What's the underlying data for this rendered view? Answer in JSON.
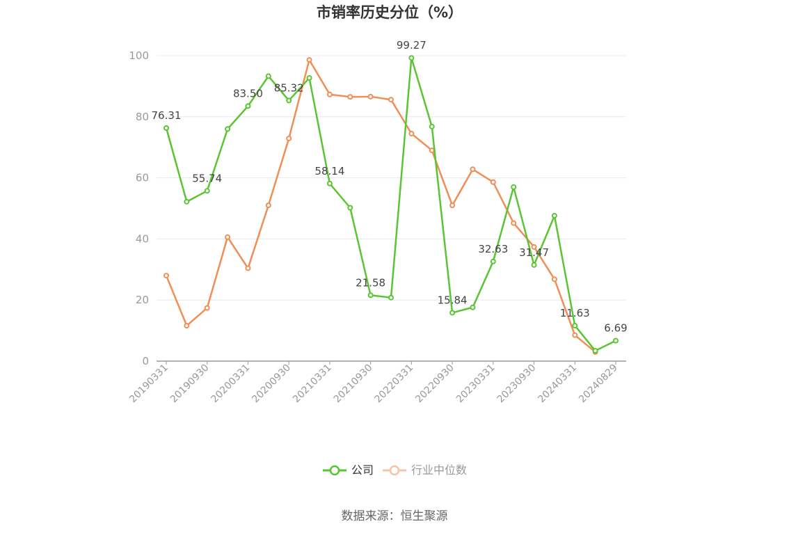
{
  "chart_data": {
    "type": "line",
    "title": "市销率历史分位（%）",
    "ylim": [
      0,
      100
    ],
    "yticks": [
      0,
      20,
      40,
      60,
      80,
      100
    ],
    "x": [
      "20190331",
      "20190630",
      "20190930",
      "20191231",
      "20200331",
      "20200630",
      "20200930",
      "20201231",
      "20210331",
      "20210630",
      "20210930",
      "20211231",
      "20220331",
      "20220630",
      "20220930",
      "20221231",
      "20230331",
      "20230630",
      "20230930",
      "20231231",
      "20240331",
      "20240630",
      "20240829"
    ],
    "x_tick_labels": [
      "20190331",
      "20190930",
      "20200331",
      "20200930",
      "20210331",
      "20210930",
      "20220331",
      "20220930",
      "20230331",
      "20230930",
      "20240331",
      "20240829"
    ],
    "series": [
      {
        "name": "公司",
        "color": "#5ac532",
        "values": [
          76.31,
          52.2,
          55.74,
          76.0,
          83.5,
          93.3,
          85.32,
          92.7,
          58.14,
          50.2,
          21.58,
          20.8,
          99.27,
          76.8,
          15.84,
          17.6,
          32.63,
          57.0,
          31.47,
          47.6,
          11.63,
          3.4,
          6.69
        ],
        "labels": {
          "0": "76.31",
          "2": "55.74",
          "4": "83.50",
          "6": "85.32",
          "8": "58.14",
          "10": "21.58",
          "12": "99.27",
          "14": "15.84",
          "16": "32.63",
          "18": "31.47",
          "20": "11.63",
          "22": "6.69"
        }
      },
      {
        "name": "行业中位数",
        "color": "#f18d55",
        "values": [
          28.0,
          11.6,
          17.4,
          40.6,
          30.4,
          51.0,
          72.9,
          98.6,
          87.3,
          86.5,
          86.6,
          85.6,
          74.5,
          69.0,
          51.0,
          62.8,
          58.6,
          45.2,
          37.4,
          26.8,
          8.5,
          3.0,
          null
        ]
      }
    ],
    "legend_position": "bottom",
    "grid": true
  },
  "legend": {
    "company_label": "公司",
    "industry_label": "行业中位数"
  },
  "footer": {
    "source": "数据来源：恒生聚源"
  }
}
